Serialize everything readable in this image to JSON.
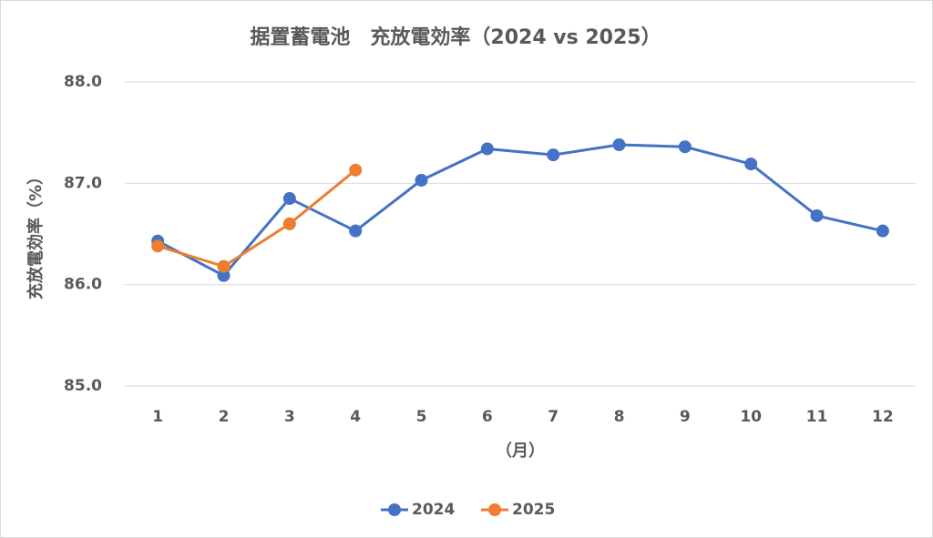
{
  "chart_data": {
    "type": "line",
    "title": "据置蓄電池　充放電効率（2024 vs 2025）",
    "x_label": "（月）",
    "y_label": "充放電効率（%）",
    "categories": [
      "1",
      "2",
      "3",
      "4",
      "5",
      "6",
      "7",
      "8",
      "9",
      "10",
      "11",
      "12"
    ],
    "series": [
      {
        "name": "2024",
        "color": "#4472c4",
        "values": [
          86.43,
          86.09,
          86.85,
          86.53,
          87.03,
          87.34,
          87.28,
          87.38,
          87.36,
          87.19,
          86.68,
          86.53
        ]
      },
      {
        "name": "2025",
        "color": "#ed7d31",
        "values": [
          86.38,
          86.18,
          86.6,
          87.13,
          null,
          null,
          null,
          null,
          null,
          null,
          null,
          null
        ]
      }
    ],
    "ylim": [
      85,
      88
    ],
    "yticks": [
      {
        "value": 85,
        "label": "85.0"
      },
      {
        "value": 86,
        "label": "86.0"
      },
      {
        "value": 87,
        "label": "87.0"
      },
      {
        "value": 88,
        "label": "88.0"
      }
    ],
    "grid": true,
    "legend": "bottom"
  }
}
